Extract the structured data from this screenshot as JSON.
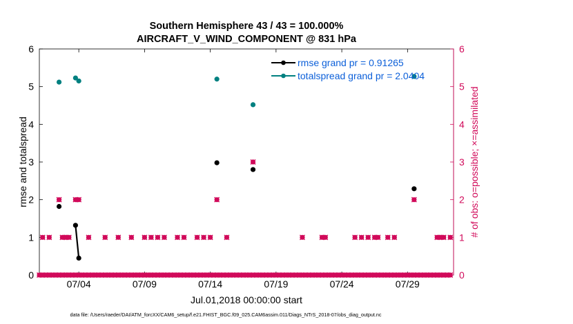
{
  "chart_data": {
    "type": "scatter",
    "title": "Southern Hemisphere 43 / 43 = 100.000%",
    "subtitle": "AIRCRAFT_V_WIND_COMPONENT @ 831 hPa",
    "xlabel": "Jul.01,2018 00:00:00 start",
    "ylabel_left": "rmse and totalspread",
    "ylabel_right": "# of obs: o=possible; ×=assimilated",
    "footer": "data file: /Users/raeder/DAI/ATM_forcXX/CAM6_setup/f.e21.FHIST_BGC.f09_025.CAM6assim.011/Diags_NTrS_2018-07/obs_diag_output.nc",
    "xlim": [
      0,
      31.5
    ],
    "ylim_left": [
      0,
      6
    ],
    "ylim_right": [
      0,
      6
    ],
    "yticks": [
      "0",
      "1",
      "2",
      "3",
      "4",
      "5",
      "6"
    ],
    "xticks": [
      {
        "x": 3,
        "label": "07/04"
      },
      {
        "x": 8,
        "label": "07/09"
      },
      {
        "x": 13,
        "label": "07/14"
      },
      {
        "x": 18,
        "label": "07/19"
      },
      {
        "x": 23,
        "label": "07/24"
      },
      {
        "x": 28,
        "label": "07/29"
      }
    ],
    "colors": {
      "rmse": "#000000",
      "totalspread": "#008080",
      "obs": "#d10a5a",
      "legend_text": "#0b5fd9"
    },
    "series": [
      {
        "name": "rmse grand pr = 0.91265",
        "points": [
          [
            1.5,
            1.82
          ],
          [
            2.75,
            1.32
          ],
          [
            3.0,
            0.45
          ],
          [
            13.5,
            2.98
          ],
          [
            16.25,
            2.8
          ],
          [
            28.5,
            2.29
          ]
        ],
        "lines": [
          [
            [
              2.75,
              1.32
            ],
            [
              3.0,
              0.45
            ]
          ]
        ]
      },
      {
        "name": "totalspread grand pr = 2.0404",
        "points": [
          [
            1.5,
            5.12
          ],
          [
            2.75,
            5.23
          ],
          [
            3.0,
            5.15
          ],
          [
            13.5,
            5.2
          ],
          [
            16.25,
            4.52
          ],
          [
            28.5,
            5.27
          ]
        ]
      }
    ],
    "obs_counts": [
      [
        0,
        0
      ],
      [
        0.25,
        0
      ],
      [
        0.5,
        0
      ],
      [
        0.75,
        0
      ],
      [
        1,
        0
      ],
      [
        1.25,
        0
      ],
      [
        1.5,
        0
      ],
      [
        1.75,
        0
      ],
      [
        2,
        0
      ],
      [
        2.25,
        0
      ],
      [
        2.5,
        0
      ],
      [
        2.75,
        0
      ],
      [
        3,
        0
      ],
      [
        3.25,
        0
      ],
      [
        3.5,
        0
      ],
      [
        3.75,
        0
      ],
      [
        4,
        0
      ],
      [
        4.25,
        0
      ],
      [
        4.5,
        0
      ],
      [
        4.75,
        0
      ],
      [
        5,
        0
      ],
      [
        5.25,
        0
      ],
      [
        5.5,
        0
      ],
      [
        5.75,
        0
      ],
      [
        6,
        0
      ],
      [
        6.25,
        0
      ],
      [
        6.5,
        0
      ],
      [
        6.75,
        0
      ],
      [
        7,
        0
      ],
      [
        7.25,
        0
      ],
      [
        7.5,
        0
      ],
      [
        7.75,
        0
      ],
      [
        8,
        0
      ],
      [
        8.25,
        0
      ],
      [
        8.5,
        0
      ],
      [
        8.75,
        0
      ],
      [
        9,
        0
      ],
      [
        9.25,
        0
      ],
      [
        9.5,
        0
      ],
      [
        9.75,
        0
      ],
      [
        10,
        0
      ],
      [
        10.25,
        0
      ],
      [
        10.5,
        0
      ],
      [
        10.75,
        0
      ],
      [
        11,
        0
      ],
      [
        11.25,
        0
      ],
      [
        11.5,
        0
      ],
      [
        11.75,
        0
      ],
      [
        12,
        0
      ],
      [
        12.25,
        0
      ],
      [
        12.5,
        0
      ],
      [
        12.75,
        0
      ],
      [
        13,
        0
      ],
      [
        13.25,
        0
      ],
      [
        13.5,
        0
      ],
      [
        13.75,
        0
      ],
      [
        14,
        0
      ],
      [
        14.25,
        0
      ],
      [
        14.5,
        0
      ],
      [
        14.75,
        0
      ],
      [
        15,
        0
      ],
      [
        15.25,
        0
      ],
      [
        15.5,
        0
      ],
      [
        15.75,
        0
      ],
      [
        16,
        0
      ],
      [
        16.25,
        0
      ],
      [
        16.5,
        0
      ],
      [
        16.75,
        0
      ],
      [
        17,
        0
      ],
      [
        17.25,
        0
      ],
      [
        17.5,
        0
      ],
      [
        17.75,
        0
      ],
      [
        18,
        0
      ],
      [
        18.25,
        0
      ],
      [
        18.5,
        0
      ],
      [
        18.75,
        0
      ],
      [
        19,
        0
      ],
      [
        19.25,
        0
      ],
      [
        19.5,
        0
      ],
      [
        19.75,
        0
      ],
      [
        20,
        0
      ],
      [
        20.25,
        0
      ],
      [
        20.5,
        0
      ],
      [
        20.75,
        0
      ],
      [
        21,
        0
      ],
      [
        21.25,
        0
      ],
      [
        21.5,
        0
      ],
      [
        21.75,
        0
      ],
      [
        22,
        0
      ],
      [
        22.25,
        0
      ],
      [
        22.5,
        0
      ],
      [
        22.75,
        0
      ],
      [
        23,
        0
      ],
      [
        23.25,
        0
      ],
      [
        23.5,
        0
      ],
      [
        23.75,
        0
      ],
      [
        24,
        0
      ],
      [
        24.25,
        0
      ],
      [
        24.5,
        0
      ],
      [
        24.75,
        0
      ],
      [
        25,
        0
      ],
      [
        25.25,
        0
      ],
      [
        25.5,
        0
      ],
      [
        25.75,
        0
      ],
      [
        26,
        0
      ],
      [
        26.25,
        0
      ],
      [
        26.5,
        0
      ],
      [
        26.75,
        0
      ],
      [
        27,
        0
      ],
      [
        27.25,
        0
      ],
      [
        27.5,
        0
      ],
      [
        27.75,
        0
      ],
      [
        28,
        0
      ],
      [
        28.25,
        0
      ],
      [
        28.5,
        0
      ],
      [
        28.75,
        0
      ],
      [
        29,
        0
      ],
      [
        29.25,
        0
      ],
      [
        29.5,
        0
      ],
      [
        29.75,
        0
      ],
      [
        30,
        0
      ],
      [
        30.25,
        0
      ],
      [
        30.5,
        0
      ],
      [
        30.75,
        0
      ],
      [
        31,
        0
      ],
      [
        31.25,
        0
      ],
      [
        0.25,
        1
      ],
      [
        0.75,
        1
      ],
      [
        1.75,
        1
      ],
      [
        2.0,
        1
      ],
      [
        2.25,
        1
      ],
      [
        3.75,
        1
      ],
      [
        5.0,
        1
      ],
      [
        6.0,
        1
      ],
      [
        7.0,
        1
      ],
      [
        8.0,
        1
      ],
      [
        8.5,
        1
      ],
      [
        9.0,
        1
      ],
      [
        9.5,
        1
      ],
      [
        10.5,
        1
      ],
      [
        11.0,
        1
      ],
      [
        12.0,
        1
      ],
      [
        12.5,
        1
      ],
      [
        13.0,
        1
      ],
      [
        14.25,
        1
      ],
      [
        20.0,
        1
      ],
      [
        21.5,
        1
      ],
      [
        21.75,
        1
      ],
      [
        24.0,
        1
      ],
      [
        24.5,
        1
      ],
      [
        25.0,
        1
      ],
      [
        25.5,
        1
      ],
      [
        25.75,
        1
      ],
      [
        26.5,
        1
      ],
      [
        27.0,
        1
      ],
      [
        30.25,
        1
      ],
      [
        30.5,
        1
      ],
      [
        30.75,
        1
      ],
      [
        31.25,
        1
      ],
      [
        1.5,
        2
      ],
      [
        2.75,
        2
      ],
      [
        3.0,
        2
      ],
      [
        13.5,
        2
      ],
      [
        28.5,
        2
      ],
      [
        16.25,
        3
      ]
    ]
  }
}
